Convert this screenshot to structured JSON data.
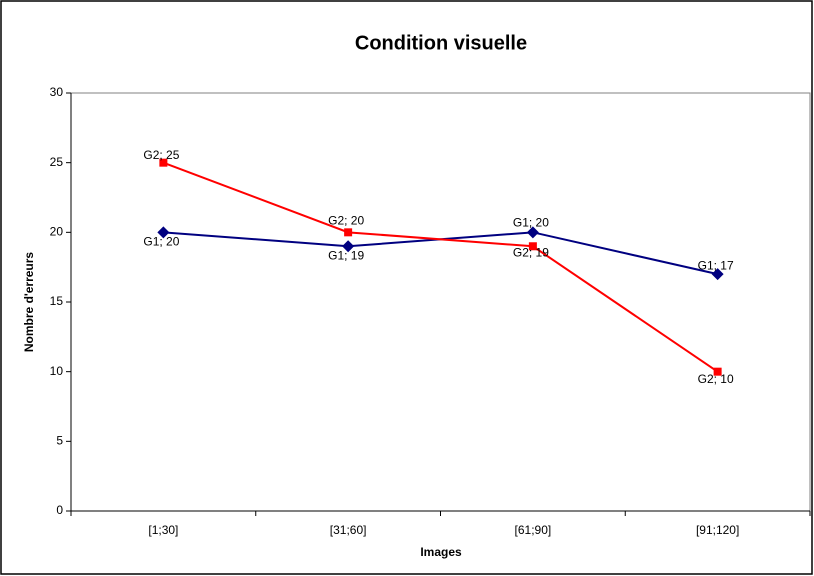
{
  "chart_data": {
    "type": "line",
    "title": "Condition visuelle",
    "x_label": "Images",
    "y_label": "Nombre d'erreurs",
    "categories": [
      "[1;30]",
      "[31;60]",
      "[61;90]",
      "[91;120]"
    ],
    "series": [
      {
        "color": "#000080",
        "marker": "diamond",
        "values": [
          20,
          19,
          20,
          17
        ],
        "value_labels": [
          "G1; 20",
          "G1; 19",
          "G1; 20",
          "G1; 17"
        ]
      },
      {
        "color": "#ff0000",
        "marker": "square",
        "values": [
          25,
          20,
          19,
          10
        ],
        "value_labels": [
          "G2; 25",
          "G2; 20",
          "G2; 19",
          "G2; 10"
        ]
      }
    ],
    "ylim": [
      0,
      30
    ],
    "yticks": [
      0,
      5,
      10,
      15,
      20,
      25,
      30
    ],
    "grid": false
  }
}
